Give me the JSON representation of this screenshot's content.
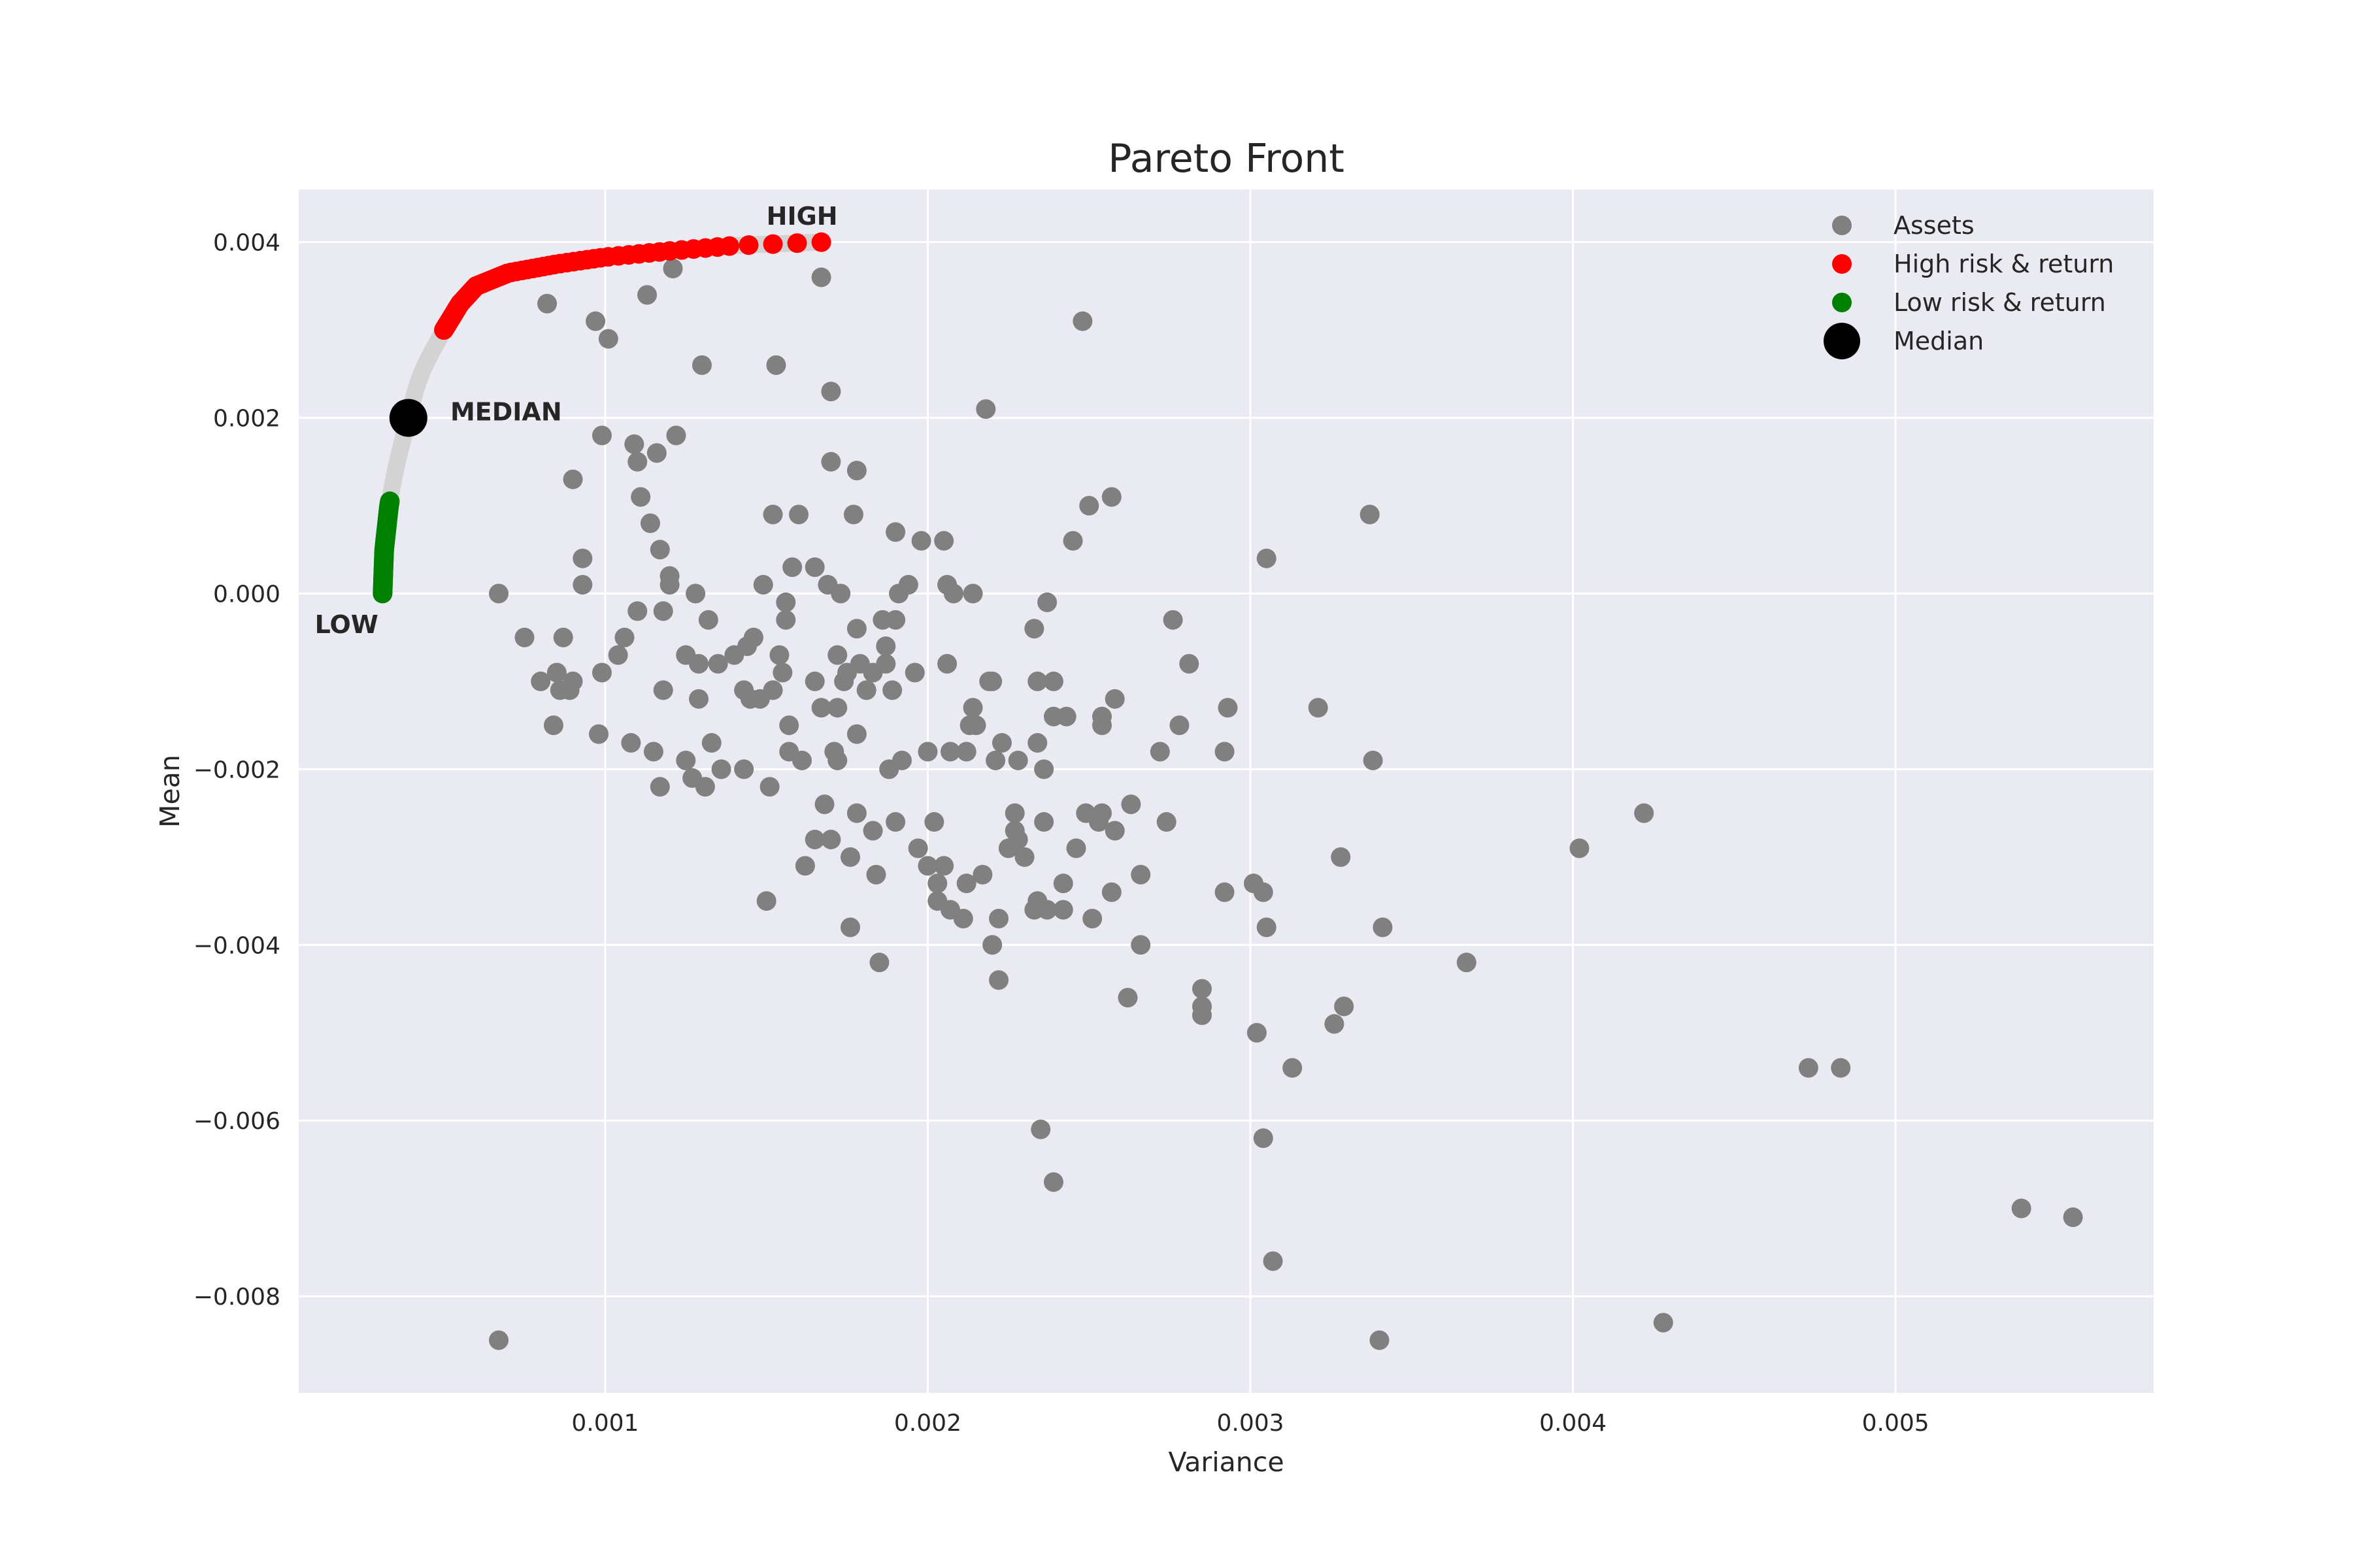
{
  "chart_data": {
    "type": "scatter",
    "title": "Pareto Front",
    "xlabel": "Variance",
    "ylabel": "Mean",
    "xlim": [
      5e-05,
      0.0058
    ],
    "ylim": [
      -0.0091,
      0.0046
    ],
    "x_ticks": [
      {
        "value": 0.001,
        "label": "0.001"
      },
      {
        "value": 0.002,
        "label": "0.002"
      },
      {
        "value": 0.003,
        "label": "0.003"
      },
      {
        "value": 0.004,
        "label": "0.004"
      },
      {
        "value": 0.005,
        "label": "0.005"
      }
    ],
    "y_ticks": [
      {
        "value": 0.004,
        "label": "0.004"
      },
      {
        "value": 0.002,
        "label": "0.002"
      },
      {
        "value": 0.0,
        "label": "0.000"
      },
      {
        "value": -0.002,
        "label": "−0.002"
      },
      {
        "value": -0.004,
        "label": "−0.004"
      },
      {
        "value": -0.006,
        "label": "−0.006"
      },
      {
        "value": -0.008,
        "label": "−0.008"
      }
    ],
    "grid": true,
    "legend_position": "top-right",
    "legend": [
      {
        "label": "Assets",
        "color": "#808080",
        "marker": "small"
      },
      {
        "label": "High risk & return",
        "color": "#ff0000",
        "marker": "small"
      },
      {
        "label": "Low risk & return",
        "color": "#008000",
        "marker": "small"
      },
      {
        "label": "Median",
        "color": "#000000",
        "marker": "large"
      }
    ],
    "colors": {
      "plot_background": "#eaeaf2",
      "grid": "#ffffff",
      "assets": "#808080",
      "high": "#ff0000",
      "low": "#008000",
      "median": "#000000",
      "frontier": "#d3d3d3"
    },
    "frontier_curve": [
      [
        0.00031,
        0.0
      ],
      [
        0.000315,
        0.0005
      ],
      [
        0.00033,
        0.001
      ],
      [
        0.00035,
        0.0014
      ],
      [
        0.00039,
        0.002
      ],
      [
        0.00043,
        0.0025
      ],
      [
        0.0005,
        0.003
      ],
      [
        0.00055,
        0.0033
      ],
      [
        0.0006,
        0.0035
      ],
      [
        0.0007,
        0.00365
      ],
      [
        0.00085,
        0.00375
      ],
      [
        0.001,
        0.00383
      ],
      [
        0.0012,
        0.0039
      ],
      [
        0.0014,
        0.00396
      ],
      [
        0.00167,
        0.004
      ]
    ],
    "high_range": [
      0.003,
      0.004
    ],
    "low_range": [
      0.0,
      0.00105
    ],
    "median": {
      "x": 0.00039,
      "y": 0.002
    },
    "annotations": [
      {
        "text": "HIGH",
        "x": 0.0015,
        "y": 0.0042
      },
      {
        "text": "MEDIAN",
        "x": 0.00052,
        "y": 0.00197
      },
      {
        "text": "LOW",
        "x": 0.0001,
        "y": -0.00045
      }
    ],
    "assets": [
      [
        0.00067,
        0.0
      ],
      [
        0.00067,
        -0.0085
      ],
      [
        0.00075,
        -0.0005
      ],
      [
        0.0008,
        -0.001
      ],
      [
        0.00082,
        0.0033
      ],
      [
        0.00084,
        -0.0015
      ],
      [
        0.00085,
        -0.0009
      ],
      [
        0.00086,
        -0.0011
      ],
      [
        0.00087,
        -0.0005
      ],
      [
        0.00089,
        -0.0011
      ],
      [
        0.0009,
        0.0013
      ],
      [
        0.0009,
        -0.001
      ],
      [
        0.00093,
        0.0004
      ],
      [
        0.00093,
        0.0001
      ],
      [
        0.00097,
        0.0031
      ],
      [
        0.00098,
        -0.0016
      ],
      [
        0.00099,
        -0.0009
      ],
      [
        0.00099,
        0.0018
      ],
      [
        0.00101,
        0.0029
      ],
      [
        0.00104,
        -0.0007
      ],
      [
        0.00106,
        -0.0005
      ],
      [
        0.00108,
        -0.0017
      ],
      [
        0.00109,
        0.0017
      ],
      [
        0.0011,
        -0.0002
      ],
      [
        0.0011,
        0.0015
      ],
      [
        0.00111,
        0.0011
      ],
      [
        0.00113,
        0.0034
      ],
      [
        0.00114,
        0.0008
      ],
      [
        0.00115,
        -0.0018
      ],
      [
        0.00116,
        0.0016
      ],
      [
        0.00117,
        -0.0022
      ],
      [
        0.00117,
        0.0005
      ],
      [
        0.00118,
        -0.0011
      ],
      [
        0.00118,
        -0.0002
      ],
      [
        0.0012,
        0.0002
      ],
      [
        0.0012,
        0.0001
      ],
      [
        0.00121,
        0.0037
      ],
      [
        0.00122,
        0.0018
      ],
      [
        0.00125,
        -0.0007
      ],
      [
        0.00125,
        -0.0019
      ],
      [
        0.00127,
        -0.0021
      ],
      [
        0.00128,
        0.0
      ],
      [
        0.00129,
        -0.0008
      ],
      [
        0.00129,
        -0.0012
      ],
      [
        0.0013,
        0.0026
      ],
      [
        0.00131,
        -0.0022
      ],
      [
        0.00132,
        -0.0003
      ],
      [
        0.00133,
        -0.0017
      ],
      [
        0.00135,
        -0.0008
      ],
      [
        0.00136,
        -0.002
      ],
      [
        0.0014,
        -0.0007
      ],
      [
        0.00143,
        -0.0011
      ],
      [
        0.00143,
        -0.002
      ],
      [
        0.00144,
        -0.0006
      ],
      [
        0.00145,
        -0.0012
      ],
      [
        0.00146,
        -0.0005
      ],
      [
        0.00148,
        -0.0012
      ],
      [
        0.00149,
        0.0001
      ],
      [
        0.0015,
        -0.0035
      ],
      [
        0.00151,
        -0.0022
      ],
      [
        0.00152,
        -0.0011
      ],
      [
        0.00152,
        0.0009
      ],
      [
        0.00153,
        0.0026
      ],
      [
        0.00154,
        -0.0007
      ],
      [
        0.00155,
        -0.0009
      ],
      [
        0.00156,
        -0.0003
      ],
      [
        0.00156,
        -0.0001
      ],
      [
        0.00157,
        -0.0015
      ],
      [
        0.00157,
        -0.0018
      ],
      [
        0.00158,
        0.0003
      ],
      [
        0.0016,
        0.0009
      ],
      [
        0.00161,
        -0.0019
      ],
      [
        0.00162,
        -0.0031
      ],
      [
        0.00165,
        0.0003
      ],
      [
        0.00165,
        -0.0028
      ],
      [
        0.00165,
        -0.001
      ],
      [
        0.00167,
        0.0036
      ],
      [
        0.00167,
        -0.0013
      ],
      [
        0.00168,
        -0.0024
      ],
      [
        0.00169,
        0.0001
      ],
      [
        0.0017,
        0.0023
      ],
      [
        0.0017,
        0.0015
      ],
      [
        0.0017,
        -0.0028
      ],
      [
        0.00171,
        -0.0018
      ],
      [
        0.00172,
        -0.0019
      ],
      [
        0.00172,
        -0.0007
      ],
      [
        0.00172,
        -0.0013
      ],
      [
        0.00173,
        0.0
      ],
      [
        0.00174,
        -0.001
      ],
      [
        0.00175,
        -0.0009
      ],
      [
        0.00176,
        -0.003
      ],
      [
        0.00176,
        -0.0038
      ],
      [
        0.00177,
        0.0009
      ],
      [
        0.00178,
        -0.0004
      ],
      [
        0.00178,
        -0.0016
      ],
      [
        0.00178,
        -0.0025
      ],
      [
        0.00178,
        0.0014
      ],
      [
        0.00179,
        -0.0008
      ],
      [
        0.00181,
        -0.0011
      ],
      [
        0.00183,
        -0.0009
      ],
      [
        0.00183,
        -0.0027
      ],
      [
        0.00184,
        -0.0032
      ],
      [
        0.00185,
        -0.0042
      ],
      [
        0.00186,
        -0.0003
      ],
      [
        0.00187,
        -0.0006
      ],
      [
        0.00187,
        -0.0008
      ],
      [
        0.00188,
        -0.002
      ],
      [
        0.00189,
        -0.0011
      ],
      [
        0.0019,
        -0.0026
      ],
      [
        0.0019,
        -0.0003
      ],
      [
        0.0019,
        0.0007
      ],
      [
        0.00191,
        0.0
      ],
      [
        0.00192,
        -0.0019
      ],
      [
        0.00194,
        0.0001
      ],
      [
        0.00196,
        -0.0009
      ],
      [
        0.00197,
        -0.0029
      ],
      [
        0.00198,
        0.0006
      ],
      [
        0.002,
        -0.0031
      ],
      [
        0.002,
        -0.0018
      ],
      [
        0.00202,
        -0.0026
      ],
      [
        0.00203,
        -0.0033
      ],
      [
        0.00203,
        -0.0035
      ],
      [
        0.00205,
        -0.0031
      ],
      [
        0.00205,
        0.0006
      ],
      [
        0.00206,
        0.0001
      ],
      [
        0.00206,
        -0.0008
      ],
      [
        0.00207,
        -0.0018
      ],
      [
        0.00207,
        -0.0036
      ],
      [
        0.00208,
        0.0
      ],
      [
        0.00211,
        -0.0037
      ],
      [
        0.00212,
        -0.0033
      ],
      [
        0.00212,
        -0.0018
      ],
      [
        0.00213,
        -0.0015
      ],
      [
        0.00214,
        -0.0013
      ],
      [
        0.00214,
        0.0
      ],
      [
        0.00215,
        -0.0015
      ],
      [
        0.00217,
        -0.0032
      ],
      [
        0.00218,
        0.0021
      ],
      [
        0.00219,
        -0.001
      ],
      [
        0.0022,
        -0.004
      ],
      [
        0.0022,
        -0.001
      ],
      [
        0.00221,
        -0.0019
      ],
      [
        0.00222,
        -0.0044
      ],
      [
        0.00222,
        -0.0037
      ],
      [
        0.00223,
        -0.0017
      ],
      [
        0.00225,
        -0.0029
      ],
      [
        0.00227,
        -0.0025
      ],
      [
        0.00227,
        -0.0027
      ],
      [
        0.00228,
        -0.0019
      ],
      [
        0.00228,
        -0.0028
      ],
      [
        0.0023,
        -0.003
      ],
      [
        0.00233,
        -0.0004
      ],
      [
        0.00233,
        -0.0036
      ],
      [
        0.00234,
        -0.0035
      ],
      [
        0.00234,
        -0.001
      ],
      [
        0.00234,
        -0.0017
      ],
      [
        0.00235,
        -0.0061
      ],
      [
        0.00236,
        -0.002
      ],
      [
        0.00236,
        -0.0026
      ],
      [
        0.00237,
        -0.0001
      ],
      [
        0.00237,
        -0.0036
      ],
      [
        0.00239,
        -0.001
      ],
      [
        0.00239,
        -0.0067
      ],
      [
        0.00239,
        -0.0014
      ],
      [
        0.00242,
        -0.0033
      ],
      [
        0.00242,
        -0.0036
      ],
      [
        0.00243,
        -0.0014
      ],
      [
        0.00245,
        0.0006
      ],
      [
        0.00246,
        -0.0029
      ],
      [
        0.00248,
        0.0031
      ],
      [
        0.00249,
        -0.0025
      ],
      [
        0.0025,
        0.001
      ],
      [
        0.00251,
        -0.0037
      ],
      [
        0.00253,
        -0.0026
      ],
      [
        0.00254,
        -0.0025
      ],
      [
        0.00254,
        -0.0014
      ],
      [
        0.00254,
        -0.0015
      ],
      [
        0.00257,
        0.0011
      ],
      [
        0.00257,
        -0.0034
      ],
      [
        0.00258,
        -0.0012
      ],
      [
        0.00258,
        -0.0027
      ],
      [
        0.00262,
        -0.0046
      ],
      [
        0.00263,
        -0.0024
      ],
      [
        0.00266,
        -0.0032
      ],
      [
        0.00266,
        -0.004
      ],
      [
        0.00272,
        -0.0018
      ],
      [
        0.00274,
        -0.0026
      ],
      [
        0.00276,
        -0.0003
      ],
      [
        0.00278,
        -0.0015
      ],
      [
        0.00281,
        -0.0008
      ],
      [
        0.00285,
        -0.0045
      ],
      [
        0.00285,
        -0.0047
      ],
      [
        0.00285,
        -0.0048
      ],
      [
        0.00292,
        -0.0034
      ],
      [
        0.00292,
        -0.0018
      ],
      [
        0.00293,
        -0.0013
      ],
      [
        0.00301,
        -0.0033
      ],
      [
        0.00302,
        -0.005
      ],
      [
        0.00304,
        -0.0062
      ],
      [
        0.00304,
        -0.0034
      ],
      [
        0.00305,
        -0.0038
      ],
      [
        0.00305,
        0.0004
      ],
      [
        0.00307,
        -0.0076
      ],
      [
        0.00313,
        -0.0054
      ],
      [
        0.00321,
        -0.0013
      ],
      [
        0.00326,
        -0.0049
      ],
      [
        0.00328,
        -0.003
      ],
      [
        0.00329,
        -0.0047
      ],
      [
        0.00337,
        0.0009
      ],
      [
        0.00338,
        -0.0019
      ],
      [
        0.0034,
        -0.0085
      ],
      [
        0.00341,
        -0.0038
      ],
      [
        0.00367,
        -0.0042
      ],
      [
        0.00402,
        -0.0029
      ],
      [
        0.00422,
        -0.0025
      ],
      [
        0.00428,
        -0.0083
      ],
      [
        0.00473,
        -0.0054
      ],
      [
        0.00483,
        -0.0054
      ],
      [
        0.00539,
        -0.007
      ],
      [
        0.00555,
        -0.0071
      ]
    ]
  }
}
